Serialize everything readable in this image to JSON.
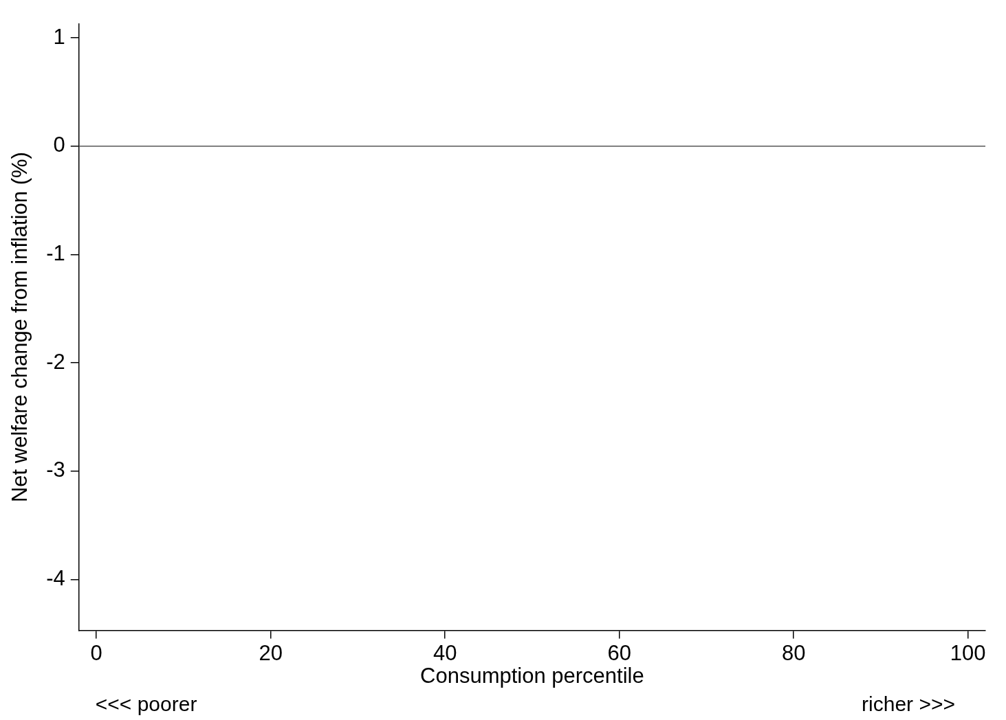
{
  "chart_data": {
    "type": "line",
    "xlabel": "Consumption percentile",
    "ylabel": "Net welfare change from inflation (%)",
    "xlim": [
      -2,
      102
    ],
    "xticks": [
      0,
      20,
      40,
      60,
      80,
      100
    ],
    "ylim": [
      -4.47,
      1.13
    ],
    "yticks": [
      -4,
      -3,
      -2,
      -1,
      0,
      1
    ],
    "grid": false,
    "ref_lines": [
      {
        "axis": "y",
        "value": 0,
        "color": "#555555"
      }
    ],
    "annotations": [
      "<<< poorer",
      "richer >>>"
    ]
  }
}
